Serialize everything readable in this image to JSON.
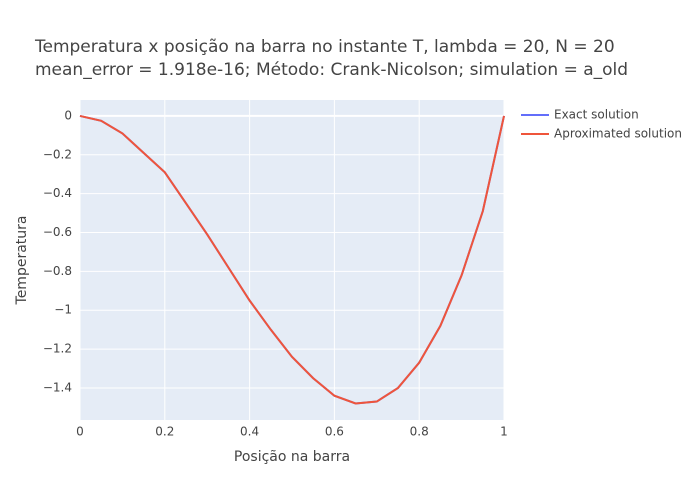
{
  "chart_data": {
    "type": "line",
    "title": [
      "Temperatura x posição na barra no instante T, lambda = 20, N = 20",
      "mean_error = 1.918e-16; Método: Crank-Nicolson; simulation = a_old"
    ],
    "x_label": "Posição na barra",
    "y_label": "Temperatura",
    "x": [
      0,
      0.05,
      0.1,
      0.15,
      0.2,
      0.25,
      0.3,
      0.35,
      0.4,
      0.45,
      0.5,
      0.55,
      0.6,
      0.65,
      0.7,
      0.75,
      0.8,
      0.85,
      0.9,
      0.95,
      1
    ],
    "series": [
      {
        "name": "Exact solution",
        "color": "#636efa",
        "values": [
          0,
          -0.025,
          -0.09,
          -0.19,
          -0.29,
          -0.45,
          -0.61,
          -0.78,
          -0.95,
          -1.1,
          -1.24,
          -1.35,
          -1.44,
          -1.48,
          -1.47,
          -1.4,
          -1.27,
          -1.08,
          -0.82,
          -0.49,
          0
        ]
      },
      {
        "name": "Aproximated solution",
        "color": "#ef553b",
        "values": [
          0,
          -0.025,
          -0.09,
          -0.19,
          -0.29,
          -0.45,
          -0.61,
          -0.78,
          -0.95,
          -1.1,
          -1.24,
          -1.35,
          -1.44,
          -1.48,
          -1.47,
          -1.4,
          -1.27,
          -1.08,
          -0.82,
          -0.49,
          0
        ]
      }
    ],
    "xlim": [
      0,
      1
    ],
    "xticks": [
      0,
      0.2,
      0.4,
      0.6,
      0.8,
      1
    ],
    "ylim": [
      -1.565,
      0.082
    ],
    "yticks": [
      0,
      {
        "value": -0.2,
        "label": "−0.2"
      },
      {
        "value": -0.4,
        "label": "−0.4"
      },
      {
        "value": -0.6,
        "label": "−0.6"
      },
      {
        "value": -0.8,
        "label": "−0.8"
      },
      {
        "value": -1,
        "label": "−1"
      },
      {
        "value": -1.2,
        "label": "−1.2"
      },
      {
        "value": -1.4,
        "label": "−1.4"
      }
    ],
    "grid": true,
    "legend": "right"
  }
}
